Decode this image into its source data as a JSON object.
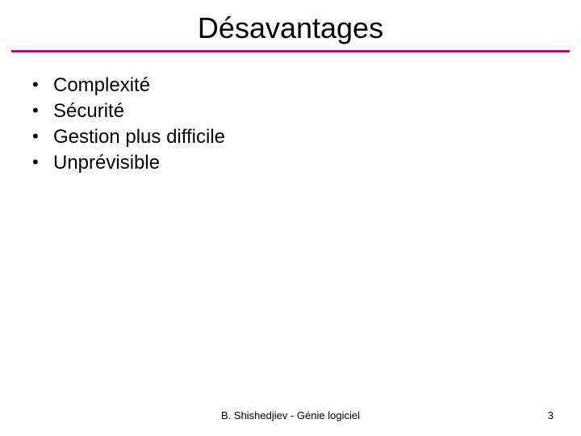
{
  "title": "Désavantages",
  "rule_color": "#c6007e",
  "bullets": {
    "items": [
      {
        "label": "Complexité"
      },
      {
        "label": "Sécurité"
      },
      {
        "label": "Gestion plus difficile"
      },
      {
        "label": "Unprévisible"
      }
    ]
  },
  "footer": {
    "author": "B. Shishedjiev - Génie logiciel",
    "page": "3"
  },
  "text_color": "#000000",
  "background_color": "#ffffff"
}
